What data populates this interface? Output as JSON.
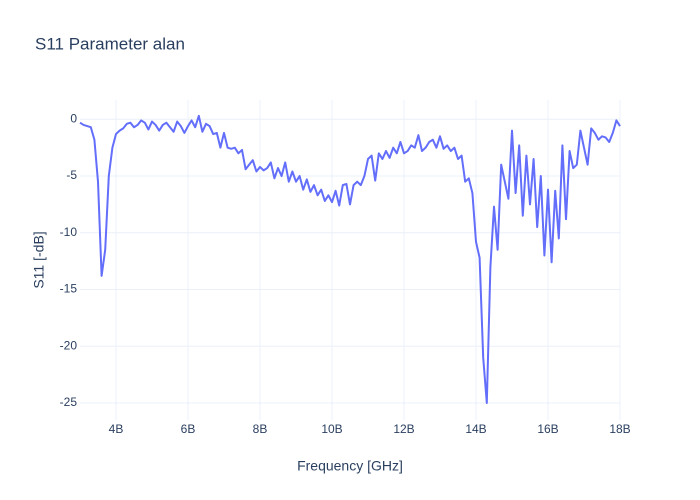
{
  "chart_data": {
    "type": "line",
    "title": "S11 Parameter alan",
    "xlabel": "Frequency [GHz]",
    "ylabel": "S11 [-dB]",
    "x": [
      3000000000,
      3100000000,
      3200000000,
      3300000000,
      3400000000,
      3500000000,
      3600000000,
      3700000000,
      3800000000,
      3900000000,
      4000000000,
      4100000000,
      4200000000,
      4300000000,
      4400000000,
      4500000000,
      4600000000,
      4700000000,
      4800000000,
      4900000000,
      5000000000,
      5100000000,
      5200000000,
      5300000000,
      5400000000,
      5500000000,
      5600000000,
      5700000000,
      5800000000,
      5900000000,
      6000000000,
      6100000000,
      6200000000,
      6300000000,
      6400000000,
      6500000000,
      6600000000,
      6700000000,
      6800000000,
      6900000000,
      7000000000,
      7100000000,
      7200000000,
      7300000000,
      7400000000,
      7500000000,
      7600000000,
      7700000000,
      7800000000,
      7900000000,
      8000000000,
      8100000000,
      8200000000,
      8300000000,
      8400000000,
      8500000000,
      8600000000,
      8700000000,
      8800000000,
      8900000000,
      9000000000,
      9100000000,
      9200000000,
      9300000000,
      9400000000,
      9500000000,
      9600000000,
      9700000000,
      9800000000,
      9900000000,
      10000000000,
      10100000000,
      10200000000,
      10300000000,
      10400000000,
      10500000000,
      10600000000,
      10700000000,
      10800000000,
      10900000000,
      11000000000,
      11100000000,
      11200000000,
      11300000000,
      11400000000,
      11500000000,
      11600000000,
      11700000000,
      11800000000,
      11900000000,
      12000000000,
      12100000000,
      12200000000,
      12300000000,
      12400000000,
      12500000000,
      12600000000,
      12700000000,
      12800000000,
      12900000000,
      13000000000,
      13100000000,
      13200000000,
      13300000000,
      13400000000,
      13500000000,
      13600000000,
      13700000000,
      13800000000,
      13900000000,
      14000000000,
      14100000000,
      14200000000,
      14300000000,
      14400000000,
      14500000000,
      14600000000,
      14700000000,
      14800000000,
      14900000000,
      15000000000,
      15100000000,
      15200000000,
      15300000000,
      15400000000,
      15500000000,
      15600000000,
      15700000000,
      15800000000,
      15900000000,
      16000000000,
      16100000000,
      16200000000,
      16300000000,
      16400000000,
      16500000000,
      16600000000,
      16700000000,
      16800000000,
      16900000000,
      17000000000,
      17100000000,
      17200000000,
      17300000000,
      17400000000,
      17500000000,
      17600000000,
      17700000000,
      17800000000,
      17900000000,
      18000000000
    ],
    "series": [
      {
        "color": "#636efa",
        "values": [
          -0.3,
          -0.5,
          -0.6,
          -0.7,
          -1.8,
          -5.5,
          -13.8,
          -11.5,
          -5,
          -2.5,
          -1.3,
          -1,
          -0.8,
          -0.4,
          -0.3,
          -0.7,
          -0.5,
          -0.1,
          -0.3,
          -0.9,
          -0.2,
          -0.5,
          -1.0,
          -0.5,
          -0.3,
          -0.7,
          -1.1,
          -0.2,
          -0.6,
          -1.2,
          -0.6,
          -0.1,
          -0.7,
          0.3,
          -1.1,
          -0.4,
          -0.6,
          -1.3,
          -1.2,
          -2.5,
          -1.2,
          -2.5,
          -2.6,
          -2.5,
          -3.0,
          -2.7,
          -4.4,
          -4.0,
          -3.6,
          -4.6,
          -4.2,
          -4.5,
          -4.3,
          -3.8,
          -5.2,
          -4.3,
          -5.0,
          -3.8,
          -5.5,
          -4.6,
          -5.5,
          -5.0,
          -6.2,
          -5.3,
          -6.4,
          -5.8,
          -6.7,
          -6.2,
          -7.2,
          -6.7,
          -7.3,
          -6.3,
          -7.6,
          -5.8,
          -5.7,
          -7.5,
          -5.8,
          -5.5,
          -5.8,
          -5.0,
          -3.5,
          -3.2,
          -5.4,
          -3.0,
          -3.5,
          -2.8,
          -3.4,
          -2.5,
          -3.0,
          -2.0,
          -3.0,
          -2.8,
          -2.3,
          -2.5,
          -1.4,
          -2.8,
          -2.5,
          -2.0,
          -1.8,
          -2.5,
          -1.5,
          -2.6,
          -2.3,
          -2.8,
          -2.5,
          -3.5,
          -3.2,
          -5.5,
          -5.2,
          -6.5,
          -10.8,
          -12.2,
          -21,
          -25,
          -13,
          -7.7,
          -11.5,
          -4.0,
          -5.5,
          -7.0,
          -1.0,
          -6.5,
          -2.3,
          -8.5,
          -3.2,
          -7.5,
          -3.5,
          -9.5,
          -5,
          -12,
          -6.2,
          -12.6,
          -6.3,
          -10.5,
          -2.3,
          -8.8,
          -2.8,
          -4.3,
          -4.0,
          -1.0,
          -2.5,
          -4.0,
          -0.8,
          -1.2,
          -1.8,
          -1.5,
          -1.6,
          -2.0,
          -1.2,
          -0.1,
          -0.6
        ]
      }
    ],
    "xlim": [
      3000000000,
      18000000000
    ],
    "xticks": [
      {
        "value": 4000000000,
        "label": "4B"
      },
      {
        "value": 6000000000,
        "label": "6B"
      },
      {
        "value": 8000000000,
        "label": "8B"
      },
      {
        "value": 10000000000,
        "label": "10B"
      },
      {
        "value": 12000000000,
        "label": "12B"
      },
      {
        "value": 14000000000,
        "label": "14B"
      },
      {
        "value": 16000000000,
        "label": "16B"
      },
      {
        "value": 18000000000,
        "label": "18B"
      }
    ],
    "ylim": [
      -26.5,
      1.7
    ],
    "yticks": [
      0,
      -5,
      -10,
      -15,
      -20,
      -25
    ],
    "grid": true
  }
}
